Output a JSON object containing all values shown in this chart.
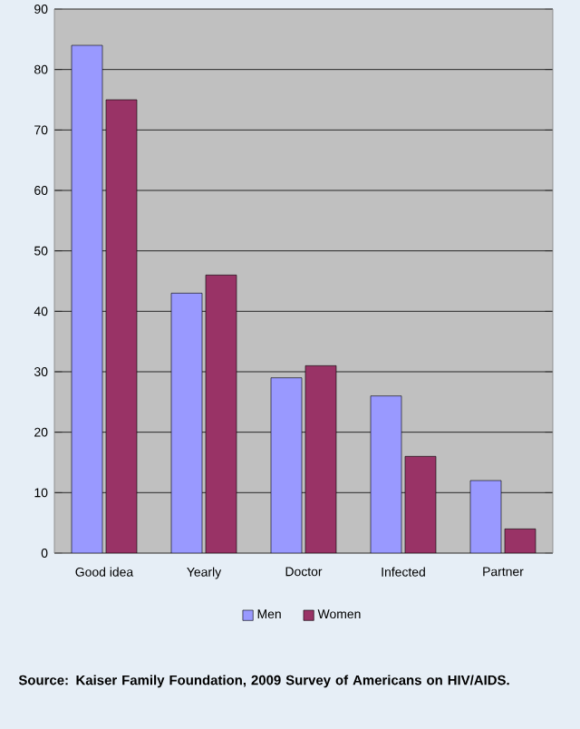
{
  "chart_data": {
    "type": "bar",
    "categories": [
      "Good idea",
      "Yearly",
      "Doctor",
      "Infected",
      "Partner"
    ],
    "series": [
      {
        "name": "Men",
        "color": "#9999ff",
        "values": [
          84,
          43,
          29,
          26,
          12
        ]
      },
      {
        "name": "Women",
        "color": "#993366",
        "values": [
          75,
          46,
          31,
          16,
          4
        ]
      }
    ],
    "ylim": [
      0,
      90
    ],
    "yticks": [
      0,
      10,
      20,
      30,
      40,
      50,
      60,
      70,
      80,
      90
    ],
    "grid": "y",
    "legend": "bottom",
    "annotations": [
      "Source: Kaiser Family Foundation, 2009 Survey of Americans on HIV/AIDS."
    ]
  }
}
